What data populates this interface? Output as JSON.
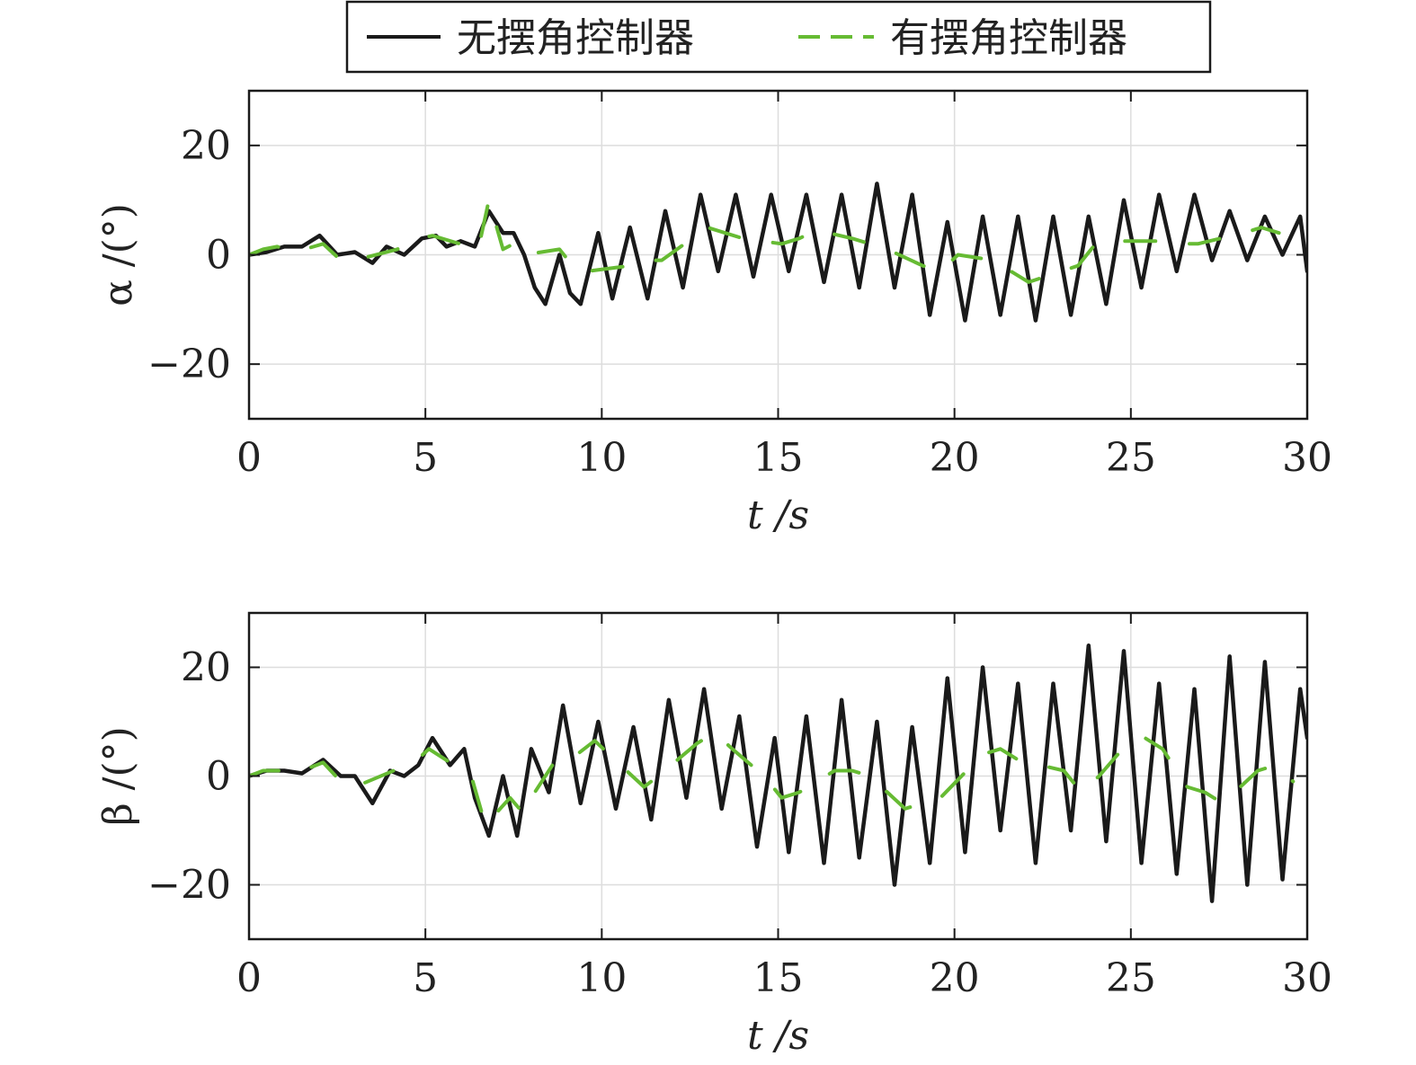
{
  "legend": {
    "entries": [
      {
        "label": "无摆角控制器",
        "color": "#1a1a1a",
        "dash": "solid"
      },
      {
        "label": "有摆角控制器",
        "color": "#66bb33",
        "dash": "dashed"
      }
    ]
  },
  "chart_data": [
    {
      "type": "line",
      "xlabel": "t /s",
      "ylabel": "α /(°)",
      "xlim": [
        0,
        30
      ],
      "ylim": [
        -30,
        30
      ],
      "xticks": [
        0,
        5,
        10,
        15,
        20,
        25,
        30
      ],
      "yticks": [
        -20,
        0,
        20
      ],
      "yticklabels": [
        "−20",
        "0",
        "20"
      ],
      "grid": true,
      "series": [
        {
          "name": "无摆角控制器",
          "color": "#1a1a1a",
          "x": [
            0,
            0.5,
            1.0,
            1.5,
            2.0,
            2.5,
            3.0,
            3.5,
            3.9,
            4.4,
            4.9,
            5.3,
            5.6,
            6.0,
            6.4,
            6.8,
            7.2,
            7.5,
            7.8,
            8.1,
            8.4,
            8.8,
            9.1,
            9.4,
            9.9,
            10.3,
            10.8,
            11.3,
            11.8,
            12.3,
            12.8,
            13.3,
            13.8,
            14.3,
            14.8,
            15.3,
            15.8,
            16.3,
            16.8,
            17.3,
            17.8,
            18.3,
            18.8,
            19.3,
            19.8,
            20.3,
            20.8,
            21.3,
            21.8,
            22.3,
            22.8,
            23.3,
            23.8,
            24.3,
            24.8,
            25.3,
            25.8,
            26.3,
            26.8,
            27.3,
            27.8,
            28.3,
            28.8,
            29.3,
            29.8,
            30.0
          ],
          "values": [
            0,
            0.5,
            1.5,
            1.5,
            3.5,
            0,
            0.5,
            -1.5,
            1.5,
            0,
            3,
            3.5,
            1.5,
            2.5,
            1.5,
            8,
            4,
            4,
            0,
            -6,
            -9,
            0,
            -7,
            -9,
            4,
            -8,
            5,
            -8,
            8,
            -6,
            11,
            -3,
            11,
            -4,
            11,
            -3,
            11,
            -5,
            11,
            -6,
            13,
            -6,
            11,
            -11,
            6,
            -12,
            7,
            -11,
            7,
            -12,
            7,
            -11,
            7,
            -9,
            10,
            -6,
            11,
            -3,
            11,
            -1,
            8,
            -1,
            7,
            0,
            7,
            -3
          ]
        },
        {
          "name": "有摆角控制器",
          "color": "#66bb33",
          "x": [
            0,
            0.4,
            0.8,
            1.3,
            2.1,
            2.6,
            3.0,
            4.2,
            4.8,
            5.2,
            6.5,
            6.8,
            7.2,
            7.5,
            7.8,
            8.8,
            9.3,
            9.6,
            10.8,
            11.3,
            11.7,
            13.0,
            13.5,
            14.0,
            15.1,
            15.6,
            16.1,
            17.1,
            17.6,
            18.1,
            19.1,
            19.6,
            20.1,
            21.1,
            21.6,
            22.1,
            23.5,
            24.0,
            24.4,
            25.8,
            26.3,
            26.9,
            28.2,
            28.7,
            29.2
          ],
          "values": [
            0,
            1,
            1.5,
            0.5,
            2,
            -1,
            -1,
            1,
            3,
            3.5,
            1,
            10,
            1,
            2,
            0,
            1,
            -3,
            -3,
            -2,
            -1,
            -1,
            5,
            4,
            3,
            2,
            3,
            4.5,
            3,
            2,
            1,
            -2,
            -3,
            0,
            -1,
            -3,
            -5,
            -2,
            2,
            2.5,
            2.5,
            2,
            2,
            4,
            5,
            4
          ]
        }
      ]
    },
    {
      "type": "line",
      "xlabel": "t /s",
      "ylabel": "β /(°)",
      "xlim": [
        0,
        30
      ],
      "ylim": [
        -30,
        30
      ],
      "xticks": [
        0,
        5,
        10,
        15,
        20,
        25,
        30
      ],
      "yticks": [
        -20,
        0,
        20
      ],
      "yticklabels": [
        "−20",
        "0",
        "20"
      ],
      "grid": true,
      "series": [
        {
          "name": "无摆角控制器",
          "color": "#1a1a1a",
          "x": [
            0,
            0.5,
            1.0,
            1.5,
            2.1,
            2.6,
            3.0,
            3.5,
            4.0,
            4.4,
            4.8,
            5.2,
            5.7,
            6.1,
            6.4,
            6.8,
            7.2,
            7.6,
            8.0,
            8.5,
            8.9,
            9.4,
            9.9,
            10.4,
            10.9,
            11.4,
            11.9,
            12.4,
            12.9,
            13.4,
            13.9,
            14.4,
            14.9,
            15.3,
            15.8,
            16.3,
            16.8,
            17.3,
            17.8,
            18.3,
            18.8,
            19.3,
            19.8,
            20.3,
            20.8,
            21.3,
            21.8,
            22.3,
            22.8,
            23.3,
            23.8,
            24.3,
            24.8,
            25.3,
            25.8,
            26.3,
            26.8,
            27.3,
            27.8,
            28.3,
            28.8,
            29.3,
            29.8,
            30.0
          ],
          "values": [
            0,
            1,
            1,
            0.5,
            3,
            0,
            0,
            -5,
            1,
            0,
            2,
            7,
            2,
            5,
            -4,
            -11,
            0,
            -11,
            5,
            -3,
            13,
            -5,
            10,
            -6,
            9,
            -8,
            14,
            -4,
            16,
            -6,
            11,
            -13,
            7,
            -14,
            11,
            -16,
            14,
            -15,
            10,
            -20,
            9,
            -16,
            18,
            -14,
            20,
            -10,
            17,
            -16,
            17,
            -10,
            24,
            -12,
            23,
            -16,
            17,
            -18,
            16,
            -23,
            22,
            -20,
            21,
            -19,
            16,
            7
          ]
        },
        {
          "name": "有摆角控制器",
          "color": "#66bb33",
          "x": [
            0,
            0.4,
            0.9,
            1.3,
            2.1,
            2.6,
            3.0,
            4.1,
            4.6,
            5.1,
            6.3,
            6.7,
            7.4,
            7.8,
            8.1,
            8.8,
            9.3,
            9.8,
            10.7,
            11.2,
            11.6,
            12.7,
            13.2,
            13.7,
            14.6,
            15.1,
            15.6,
            16.6,
            17.1,
            17.6,
            18.6,
            19.1,
            19.6,
            20.8,
            21.3,
            21.8,
            23.1,
            23.6,
            24.1,
            24.9,
            25.4,
            25.9,
            26.6,
            27.1,
            27.6,
            28.6,
            29.1,
            29.6
          ],
          "values": [
            0,
            1,
            1,
            0.5,
            2.5,
            -1,
            -2,
            1,
            2,
            5,
            0,
            -9,
            -4,
            -7,
            -3,
            4,
            4,
            6.5,
            1,
            -2,
            0,
            6,
            8,
            5,
            0,
            -4,
            -3,
            1,
            1,
            0,
            -6,
            -5,
            -4,
            4,
            5,
            3,
            1,
            -3,
            0,
            6,
            7,
            5,
            -2,
            -3,
            -5,
            1,
            2,
            -1
          ]
        }
      ]
    }
  ]
}
